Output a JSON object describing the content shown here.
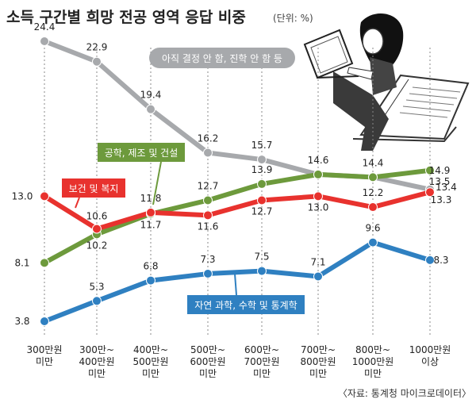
{
  "chart_data": {
    "type": "line",
    "title": "소득 구간별 희망 전공 영역 응답 비중",
    "unit": "(단위: %)",
    "source": "〈자료: 통계청 마이크로데이터〉",
    "categories": [
      [
        "300만원",
        "미만"
      ],
      [
        "300만~",
        "400만원",
        "미만"
      ],
      [
        "400만~",
        "500만원",
        "미만"
      ],
      [
        "500만~",
        "600만원",
        "미만"
      ],
      [
        "600만~",
        "700만원",
        "미만"
      ],
      [
        "700만~",
        "800만원",
        "미만"
      ],
      [
        "800만~",
        "1000만원",
        "미만"
      ],
      [
        "1000만원",
        "이상"
      ]
    ],
    "series": [
      {
        "name": "아직 결정 안 함, 진학 안 함 등",
        "color": "#a7a9ac",
        "values": [
          24.4,
          22.9,
          19.4,
          16.2,
          15.7,
          14.6,
          14.4,
          13.5
        ],
        "labels": [
          "24.4",
          "22.9",
          "19.4",
          "16.2",
          "15.7",
          "14.6",
          "14.4",
          "13.5"
        ]
      },
      {
        "name": "공학, 제조 및 건설",
        "color": "#6d9a3c",
        "values": [
          8.1,
          10.2,
          11.7,
          12.7,
          13.9,
          14.6,
          14.4,
          14.9
        ],
        "labels": [
          "8.1",
          "10.2",
          "11.7",
          "12.7",
          "13.9",
          "",
          "",
          "14.9"
        ]
      },
      {
        "name": "보건 및 복지",
        "color": "#e8322e",
        "values": [
          13.0,
          10.6,
          11.8,
          11.6,
          12.7,
          13.0,
          12.2,
          13.3
        ],
        "labels": [
          "13.0",
          "10.6",
          "11.8",
          "11.6",
          "12.7",
          "13.0",
          "12.2",
          "13.3"
        ]
      },
      {
        "name": "자연 과학, 수학 및 통계학",
        "color": "#2f80c1",
        "values": [
          3.8,
          5.3,
          6.8,
          7.3,
          7.5,
          7.1,
          9.6,
          8.3
        ],
        "labels": [
          "3.8",
          "5.3",
          "6.8",
          "7.3",
          "7.5",
          "7.1",
          "9.6",
          "8.3"
        ]
      }
    ],
    "extra_labels": [
      "13.4"
    ],
    "legend": "inline-labels"
  },
  "illustration": {
    "icon": "woman-reading-laptop-icon"
  }
}
